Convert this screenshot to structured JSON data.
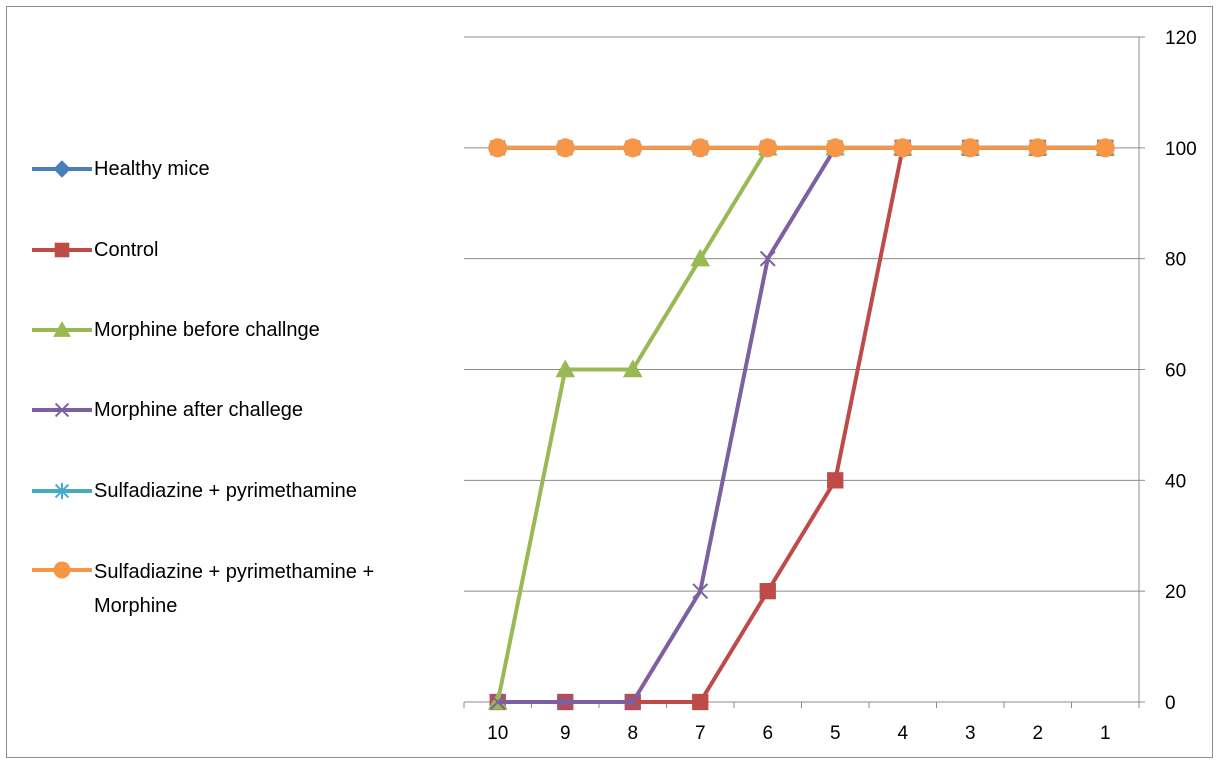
{
  "chart_data": {
    "type": "line",
    "categories": [
      "10",
      "9",
      "8",
      "7",
      "6",
      "5",
      "4",
      "3",
      "2",
      "1"
    ],
    "ylim": [
      0,
      120
    ],
    "yticks": [
      "0",
      "20",
      "40",
      "60",
      "80",
      "100",
      "120"
    ],
    "y_axis_side": "right",
    "grid": true,
    "legend_position": "left",
    "series": [
      {
        "name": "Healthy mice",
        "color": "#4a7ebb",
        "marker": "diamond",
        "values": [
          100,
          100,
          100,
          100,
          100,
          100,
          100,
          100,
          100,
          100
        ]
      },
      {
        "name": "Control",
        "color": "#be4b48",
        "marker": "square",
        "values": [
          0,
          0,
          0,
          0,
          20,
          40,
          100,
          100,
          100,
          100
        ]
      },
      {
        "name": "Morphine before challnge",
        "color": "#98b954",
        "marker": "triangle",
        "values": [
          0,
          60,
          60,
          80,
          100,
          100,
          100,
          100,
          100,
          100
        ]
      },
      {
        "name": "Morphine after challege",
        "color": "#7d60a0",
        "marker": "x",
        "values": [
          0,
          0,
          0,
          20,
          80,
          100,
          100,
          100,
          100,
          100
        ]
      },
      {
        "name": "Sulfadiazine + pyrimethamine",
        "color": "#46aac5",
        "marker": "star",
        "values": [
          100,
          100,
          100,
          100,
          100,
          100,
          100,
          100,
          100,
          100
        ]
      },
      {
        "name": "Sulfadiazine + pyrimethamine + Morphine",
        "color": "#f79646",
        "marker": "circle",
        "values": [
          100,
          100,
          100,
          100,
          100,
          100,
          100,
          100,
          100,
          100
        ]
      }
    ]
  }
}
